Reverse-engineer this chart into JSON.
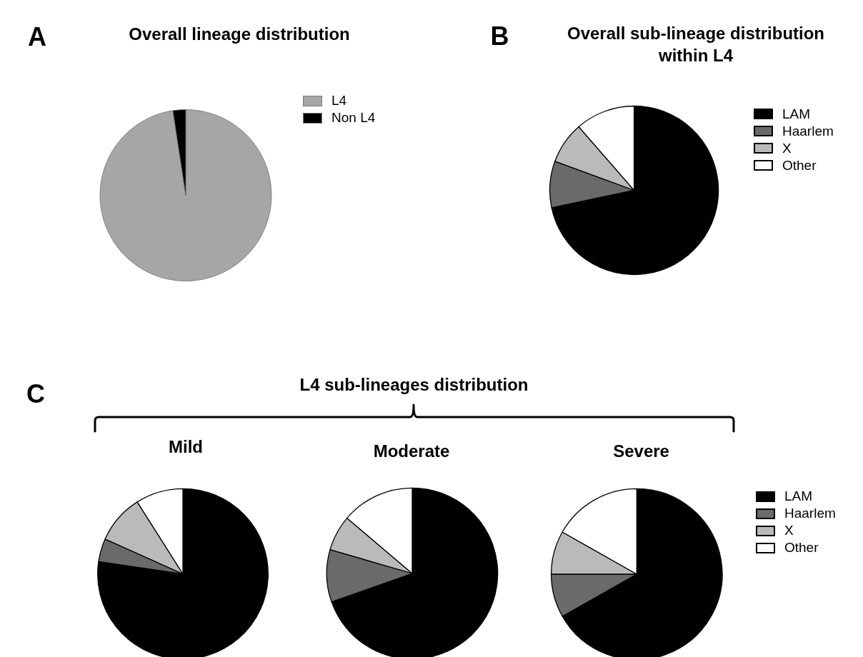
{
  "chart_data": [
    {
      "type": "pie",
      "title": "Overall lineage distribution",
      "categories": [
        "L4",
        "Non L4"
      ],
      "values": [
        97.6,
        2.4
      ],
      "colors": [
        "#a6a6a6",
        "#000000"
      ],
      "legend": "right",
      "annotations": [
        "A"
      ]
    },
    {
      "type": "pie",
      "title": "Overall sub-lineage distribution within L4",
      "categories": [
        "LAM",
        "Haarlem",
        "X",
        "Other"
      ],
      "values": [
        71.7,
        8.9,
        8.0,
        11.4
      ],
      "colors": [
        "#000000",
        "#6a6a6a",
        "#bababa",
        "#ffffff"
      ],
      "legend": "right",
      "annotations": [
        "B"
      ]
    },
    {
      "type": "pie",
      "title": "Mild",
      "categories": [
        null,
        null,
        null,
        null
      ],
      "values": [
        77.3,
        4.4,
        9.3,
        9.0
      ],
      "colors": [
        "#000000",
        "#6a6a6a",
        "#bababa",
        "#ffffff"
      ],
      "annotations": [
        "C"
      ]
    },
    {
      "type": "pie",
      "title": "Moderate",
      "categories": [
        null,
        null,
        null,
        null
      ],
      "values": [
        69.6,
        9.9,
        6.7,
        13.8
      ],
      "colors": [
        "#000000",
        "#6a6a6a",
        "#bababa",
        "#ffffff"
      ],
      "annotations": [
        "L4 sub-lineages distribution"
      ]
    },
    {
      "type": "pie",
      "title": "Severe",
      "categories": [
        "LAM",
        "Haarlem",
        "X",
        "Other"
      ],
      "values": [
        66.8,
        8.2,
        8.2,
        16.8
      ],
      "colors": [
        "#000000",
        "#6a6a6a",
        "#bababa",
        "#ffffff"
      ],
      "legend": "right"
    }
  ]
}
